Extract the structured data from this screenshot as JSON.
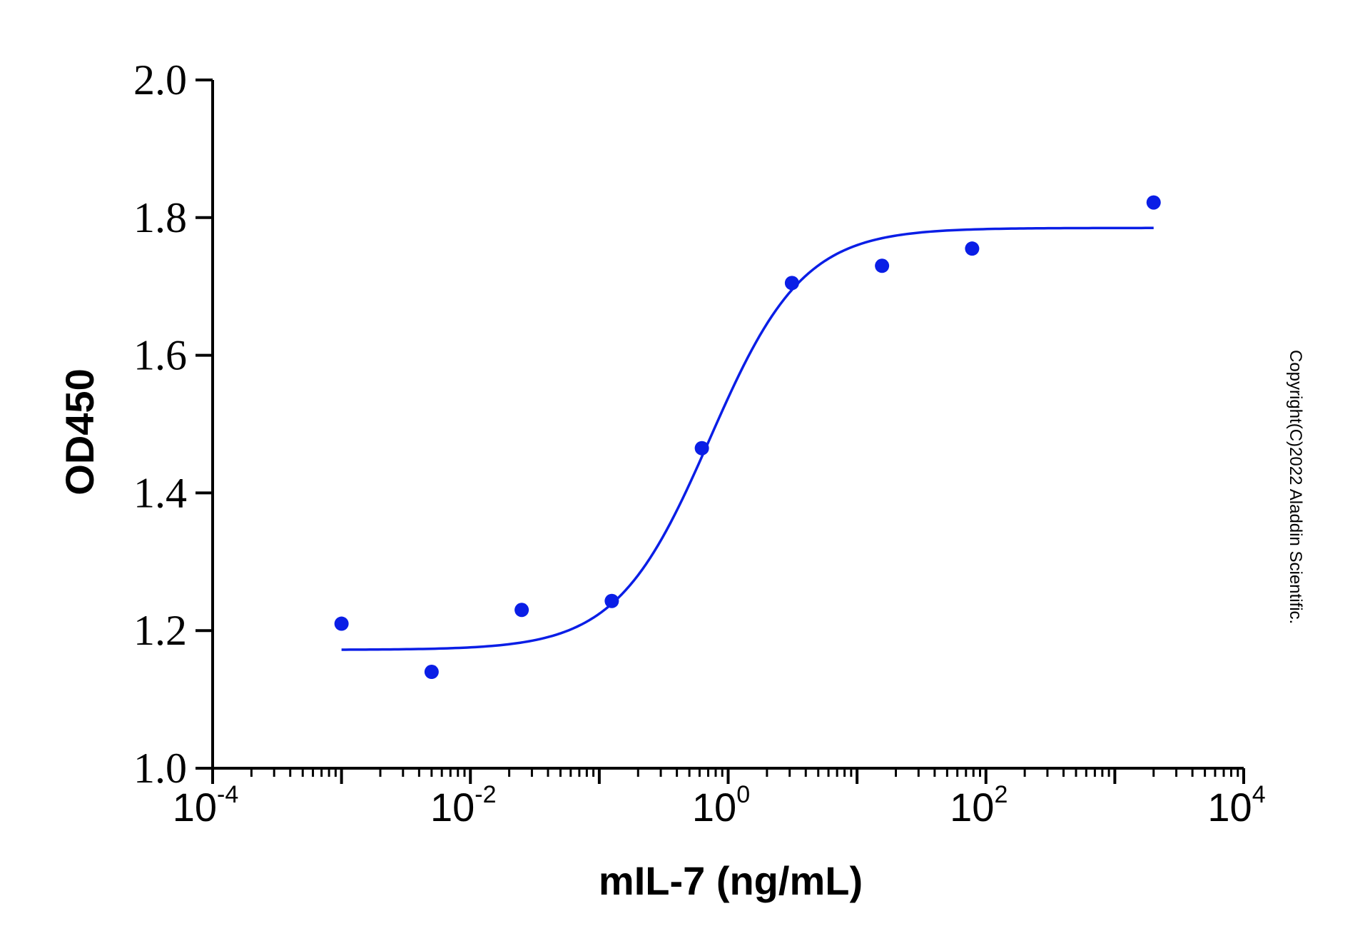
{
  "chart_data": {
    "type": "scatter",
    "xlabel": "mIL-7 (ng/mL)",
    "ylabel": "OD450",
    "xscale": "log",
    "xlim": [
      0.0001,
      10000
    ],
    "ylim": [
      1.0,
      2.0
    ],
    "y_ticks": [
      "1.0",
      "1.2",
      "1.4",
      "1.6",
      "1.8",
      "2.0"
    ],
    "x_ticks": [
      {
        "base": "10",
        "exp": "-4"
      },
      {
        "base": "10",
        "exp": "-2"
      },
      {
        "base": "10",
        "exp": "0"
      },
      {
        "base": "10",
        "exp": "2"
      },
      {
        "base": "10",
        "exp": "4"
      }
    ],
    "series": [
      {
        "color": "#0a1ee6",
        "points": [
          {
            "x": 0.001,
            "y": 1.21
          },
          {
            "x": 0.005,
            "y": 1.14
          },
          {
            "x": 0.025,
            "y": 1.23
          },
          {
            "x": 0.125,
            "y": 1.243
          },
          {
            "x": 0.625,
            "y": 1.465
          },
          {
            "x": 3.125,
            "y": 1.705
          },
          {
            "x": 15.625,
            "y": 1.73
          },
          {
            "x": 78.125,
            "y": 1.755
          },
          {
            "x": 2000,
            "y": 1.822
          }
        ],
        "fit": {
          "model": "4PL",
          "bottom": 1.172,
          "top": 1.785,
          "ec50": 0.72,
          "hill": 1.2,
          "x_range": [
            0.001,
            2000
          ]
        }
      }
    ],
    "axis_color": "#000000",
    "grid": false,
    "annotations": [
      "Copyright(C)2022 Aladdin Scientific."
    ]
  }
}
